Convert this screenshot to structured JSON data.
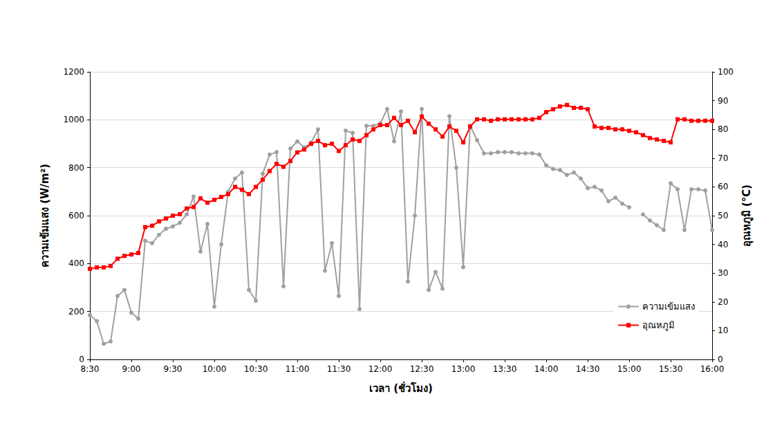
{
  "chart_data": {
    "type": "line",
    "x_label": "เวลา (ชั่วโมง)",
    "y_label": "ความเข้มแสง (W/m²)",
    "y2_label": "อุณหภูมิ (°C)",
    "categories": [
      "8:30",
      null,
      null,
      null,
      null,
      null,
      "9:00",
      null,
      null,
      null,
      null,
      null,
      "9:30",
      null,
      null,
      null,
      null,
      null,
      "10:00",
      null,
      null,
      null,
      null,
      null,
      "10:30",
      null,
      null,
      null,
      null,
      null,
      "11:00",
      null,
      null,
      null,
      null,
      null,
      "11:30",
      null,
      null,
      null,
      null,
      null,
      "12:00",
      null,
      null,
      null,
      null,
      null,
      "12:30",
      null,
      null,
      null,
      null,
      null,
      "13:00",
      null,
      null,
      null,
      null,
      null,
      "13:30",
      null,
      null,
      null,
      null,
      null,
      "14:00",
      null,
      null,
      null,
      null,
      null,
      "14:30",
      null,
      null,
      null,
      null,
      null,
      "15:00",
      null,
      null,
      null,
      null,
      null,
      "15:30",
      null,
      null,
      null,
      null,
      null,
      "16:00"
    ],
    "series": [
      {
        "name": "ความเข้มแสง",
        "color": "#a0a0a0",
        "marker": "circle",
        "line_style": "solid",
        "values": [
          185,
          160,
          65,
          75,
          265,
          290,
          195,
          170,
          495,
          485,
          520,
          545,
          555,
          570,
          605,
          680,
          450,
          565,
          220,
          480,
          700,
          755,
          780,
          290,
          245,
          775,
          855,
          865,
          305,
          880,
          910,
          885,
          905,
          960,
          370,
          485,
          265,
          955,
          945,
          210,
          975,
          975,
          985,
          1045,
          910,
          1035,
          325,
          600,
          1045,
          290,
          365,
          295,
          1015,
          800,
          385,
          975,
          915,
          860,
          860,
          865,
          865,
          865,
          860,
          860,
          860,
          855,
          810,
          795,
          790,
          770,
          780,
          755,
          715,
          720,
          705,
          660,
          675,
          650,
          635,
          null,
          605,
          580,
          560,
          540,
          735,
          710,
          540,
          710,
          710,
          705,
          540
        ]
      },
      {
        "name": "อุณหภูมิ",
        "color": "#ff0000",
        "marker": "square",
        "line_style": "solid",
        "axis": "y2",
        "values": [
          31.5,
          32,
          32,
          32.5,
          35,
          36,
          36.5,
          37,
          46,
          46.5,
          48,
          49,
          50,
          50.5,
          52.5,
          53,
          56,
          54.5,
          55.5,
          56.5,
          57.5,
          60,
          59,
          57.5,
          60,
          62.5,
          65.5,
          68,
          67,
          69,
          72,
          73,
          75,
          76,
          74.5,
          75,
          72.5,
          74.5,
          76.5,
          76,
          78,
          80,
          81.5,
          81.5,
          84,
          81.5,
          83,
          79,
          84.5,
          82,
          80,
          77.5,
          81,
          79.5,
          75.5,
          81,
          83.5,
          83.5,
          83,
          83.5,
          83.5,
          83.5,
          83.5,
          83.5,
          83.5,
          84,
          86,
          87,
          88,
          88.5,
          87.5,
          87.5,
          87,
          81,
          80.5,
          80.5,
          80,
          80,
          79.5,
          79,
          78,
          77,
          76.5,
          76,
          75.5,
          83.5,
          83.5,
          83,
          83,
          83,
          83
        ]
      }
    ],
    "ylim": [
      0,
      1200
    ],
    "yticks": [
      0,
      200,
      400,
      600,
      800,
      1000,
      1200
    ],
    "y2lim": [
      0,
      100
    ],
    "y2ticks": [
      0,
      10,
      20,
      30,
      40,
      50,
      60,
      70,
      80,
      90,
      100
    ],
    "grid": true,
    "legend": "lower right"
  }
}
